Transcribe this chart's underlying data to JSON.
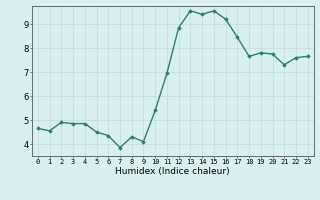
{
  "x": [
    0,
    1,
    2,
    3,
    4,
    5,
    6,
    7,
    8,
    9,
    10,
    11,
    12,
    13,
    14,
    15,
    16,
    17,
    18,
    19,
    20,
    21,
    22,
    23
  ],
  "y": [
    4.65,
    4.55,
    4.9,
    4.85,
    4.85,
    4.5,
    4.35,
    3.85,
    4.3,
    4.1,
    5.4,
    6.95,
    8.85,
    9.55,
    9.4,
    9.55,
    9.2,
    8.45,
    7.65,
    7.8,
    7.75,
    7.3,
    7.6,
    7.65
  ],
  "xlabel": "Humidex (Indice chaleur)",
  "line_color": "#2e7d6e",
  "bg_color": "#d9f0f0",
  "grid_color": "#c8dede",
  "axis_color": "#666666",
  "ylim": [
    3.5,
    9.75
  ],
  "xlim": [
    -0.5,
    23.5
  ],
  "yticks": [
    4,
    5,
    6,
    7,
    8,
    9
  ],
  "xticks": [
    0,
    1,
    2,
    3,
    4,
    5,
    6,
    7,
    8,
    9,
    10,
    11,
    12,
    13,
    14,
    15,
    16,
    17,
    18,
    19,
    20,
    21,
    22,
    23
  ],
  "tick_fontsize": 5,
  "xlabel_fontsize": 6.5,
  "ylabel_fontsize": 5,
  "line_width": 1.0,
  "marker_size": 1.8
}
